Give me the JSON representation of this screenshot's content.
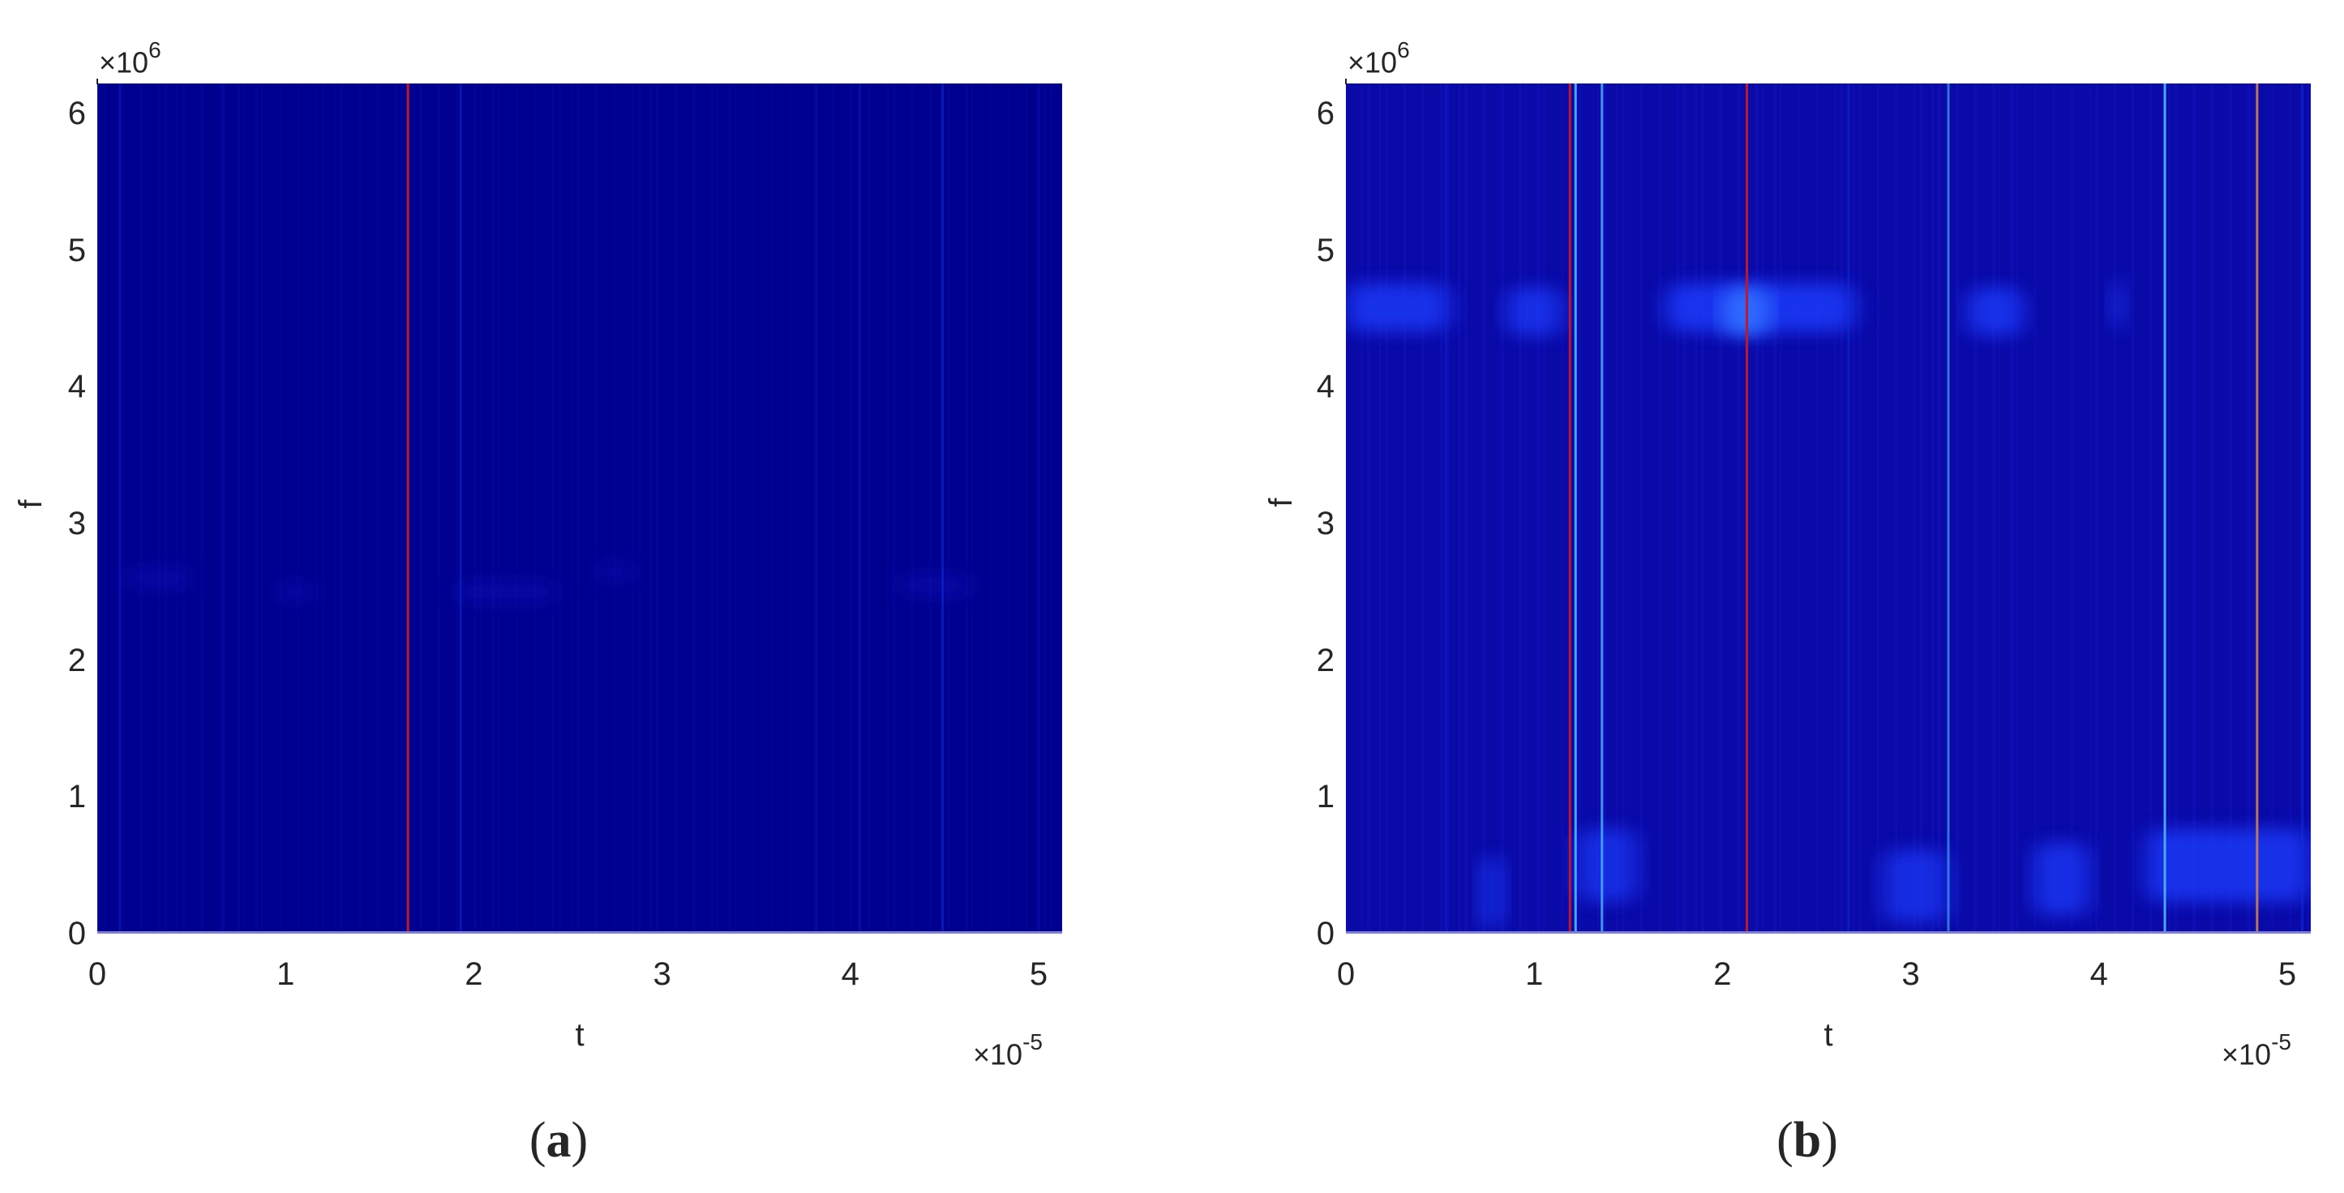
{
  "figure": {
    "panels": [
      {
        "id": "a",
        "caption_letter": "a",
        "y_exponent_label": "×10",
        "y_exponent": "6",
        "x_exponent_label": "×10",
        "x_exponent": "-5",
        "xlabel": "t",
        "ylabel": "f",
        "xticks": [
          "0",
          "1",
          "2",
          "3",
          "4",
          "5"
        ],
        "yticks": [
          "0",
          "1",
          "2",
          "3",
          "4",
          "5",
          "6"
        ]
      },
      {
        "id": "b",
        "caption_letter": "b",
        "y_exponent_label": "×10",
        "y_exponent": "6",
        "x_exponent_label": "×10",
        "x_exponent": "-5",
        "xlabel": "t",
        "ylabel": "f",
        "xticks": [
          "0",
          "1",
          "2",
          "3",
          "4",
          "5"
        ],
        "yticks": [
          "0",
          "1",
          "2",
          "3",
          "4",
          "5",
          "6"
        ]
      }
    ]
  },
  "colors": {
    "background_low": "#00008f",
    "background_b": "#0a0aa8",
    "band": "#1a3cff",
    "band_bright": "#2f6bff",
    "red_line": "#c0182a",
    "orange_line": "#d0805a",
    "cyan_line": "#4fb8ff",
    "blue_line": "#1030e0"
  },
  "chart_data": [
    {
      "type": "heatmap",
      "title": "(a)",
      "xlabel": "t",
      "ylabel": "f",
      "x_multiplier": "1e-5",
      "y_multiplier": "1e6",
      "xlim": [
        0,
        5.12
      ],
      "ylim": [
        0,
        6.25
      ],
      "xticks": [
        0,
        1,
        2,
        3,
        4,
        5
      ],
      "yticks": [
        0,
        1,
        2,
        3,
        4,
        5,
        6
      ],
      "colormap": "jet (low intensity, mostly dark blue)",
      "features": {
        "vertical_lines": [
          {
            "t": 0.12,
            "color": "blue",
            "intensity": 0.35
          },
          {
            "t": 0.67,
            "color": "blue",
            "intensity": 0.2
          },
          {
            "t": 1.65,
            "color": "red",
            "intensity": 1.0
          },
          {
            "t": 1.93,
            "color": "blue",
            "intensity": 0.45
          },
          {
            "t": 3.82,
            "color": "blue",
            "intensity": 0.2
          },
          {
            "t": 4.05,
            "color": "blue",
            "intensity": 0.3
          },
          {
            "t": 4.49,
            "color": "blue",
            "intensity": 0.5
          },
          {
            "t": 5.0,
            "color": "blue",
            "intensity": 0.2
          }
        ],
        "bands": [
          {
            "t_start": 0.15,
            "t_end": 0.5,
            "f": 2.6,
            "intensity": 0.15
          },
          {
            "t_start": 0.95,
            "t_end": 1.15,
            "f": 2.5,
            "intensity": 0.12
          },
          {
            "t_start": 1.9,
            "t_end": 2.45,
            "f": 2.5,
            "intensity": 0.15
          },
          {
            "t_start": 2.65,
            "t_end": 2.85,
            "f": 2.65,
            "intensity": 0.12
          },
          {
            "t_start": 4.25,
            "t_end": 4.65,
            "f": 2.55,
            "intensity": 0.15
          }
        ]
      }
    },
    {
      "type": "heatmap",
      "title": "(b)",
      "xlabel": "t",
      "ylabel": "f",
      "x_multiplier": "1e-5",
      "y_multiplier": "1e6",
      "xlim": [
        0,
        5.12
      ],
      "ylim": [
        0,
        6.25
      ],
      "xticks": [
        0,
        1,
        2,
        3,
        4,
        5
      ],
      "yticks": [
        0,
        1,
        2,
        3,
        4,
        5,
        6
      ],
      "colormap": "jet (low intensity, blue)",
      "features": {
        "vertical_lines": [
          {
            "t": 0.53,
            "color": "blue",
            "intensity": 0.3
          },
          {
            "t": 1.19,
            "color": "red",
            "intensity": 1.0
          },
          {
            "t": 1.22,
            "color": "cyan",
            "intensity": 0.9
          },
          {
            "t": 1.36,
            "color": "cyan",
            "intensity": 0.8
          },
          {
            "t": 2.13,
            "color": "red",
            "intensity": 1.0
          },
          {
            "t": 2.67,
            "color": "blue",
            "intensity": 0.45
          },
          {
            "t": 3.2,
            "color": "cyan",
            "intensity": 0.6
          },
          {
            "t": 4.35,
            "color": "cyan",
            "intensity": 0.9
          },
          {
            "t": 4.84,
            "color": "orange",
            "intensity": 0.9
          },
          {
            "t": 5.08,
            "color": "blue",
            "intensity": 0.5
          }
        ],
        "bands": [
          {
            "t_start": 0.0,
            "t_end": 0.55,
            "f": 4.58,
            "intensity": 0.55
          },
          {
            "t_start": 0.85,
            "t_end": 1.15,
            "f": 4.55,
            "intensity": 0.5
          },
          {
            "t_start": 1.7,
            "t_end": 2.7,
            "f": 4.58,
            "intensity": 0.6
          },
          {
            "t_start": 2.0,
            "t_end": 2.25,
            "f": 4.55,
            "intensity": 0.85
          },
          {
            "t_start": 3.3,
            "t_end": 3.6,
            "f": 4.55,
            "intensity": 0.55
          },
          {
            "t_start": 4.05,
            "t_end": 4.15,
            "f": 4.6,
            "intensity": 0.3
          },
          {
            "t_start": 0.7,
            "t_end": 0.85,
            "f": 0.3,
            "intensity": 0.35
          },
          {
            "t_start": 1.22,
            "t_end": 1.55,
            "f": 0.5,
            "intensity": 0.45
          },
          {
            "t_start": 2.85,
            "t_end": 3.2,
            "f": 0.35,
            "intensity": 0.45
          },
          {
            "t_start": 3.65,
            "t_end": 3.95,
            "f": 0.4,
            "intensity": 0.5
          },
          {
            "t_start": 4.25,
            "t_end": 5.12,
            "f": 0.5,
            "intensity": 0.55
          }
        ]
      }
    }
  ]
}
